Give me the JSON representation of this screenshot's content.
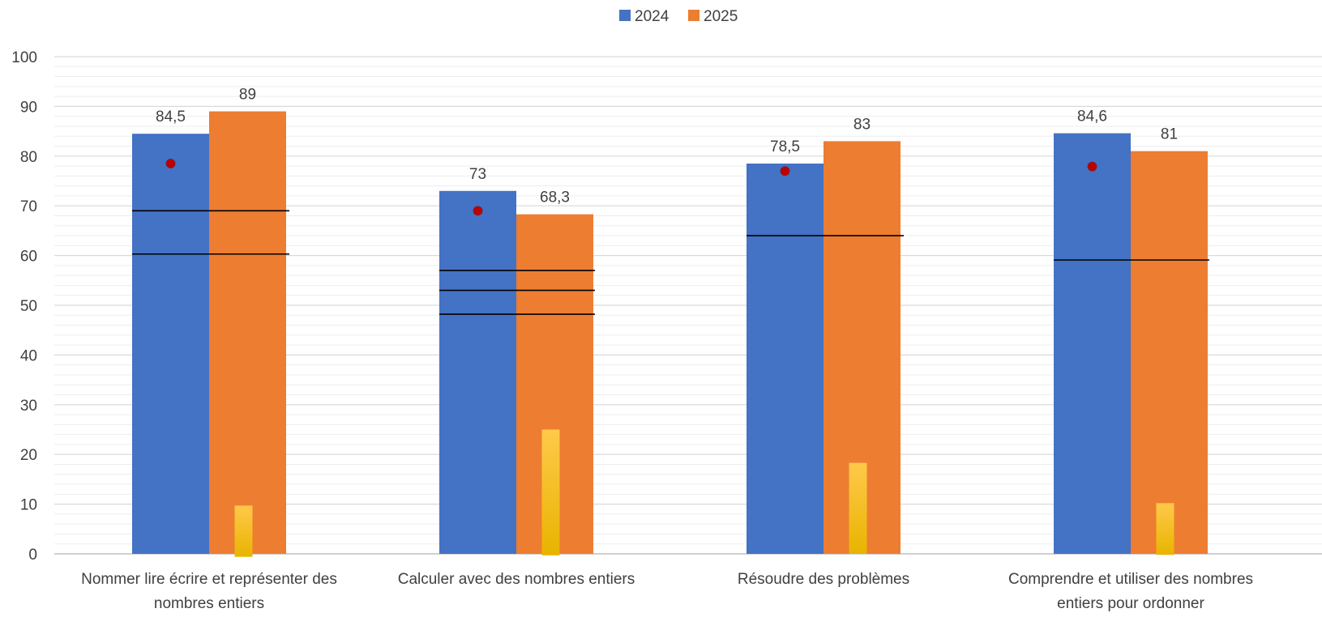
{
  "chart_data": {
    "type": "bar",
    "categories": [
      [
        "Nommer lire écrire et représenter des",
        "nombres entiers"
      ],
      [
        "Calculer avec des nombres entiers"
      ],
      [
        "Résoudre des problèmes"
      ],
      [
        "Comprendre et utiliser des nombres",
        "entiers pour ordonner"
      ]
    ],
    "series": [
      {
        "name": "2024",
        "color": "#4472C4",
        "values": [
          84.5,
          73,
          78.5,
          84.6
        ],
        "labels": [
          "84,5",
          "73",
          "78,5",
          "84,6"
        ]
      },
      {
        "name": "2025",
        "color": "#ED7D31",
        "values": [
          89,
          68.3,
          83,
          81
        ],
        "labels": [
          "89",
          "68,3",
          "83",
          "81"
        ]
      }
    ],
    "overlay_bars": {
      "color_top": "#FFC94A",
      "color_bottom": "#E8B400",
      "values": [
        9.7,
        25,
        18.3,
        10.2
      ],
      "bottoms": [
        -0.6,
        -0.3,
        0,
        -0.2
      ]
    },
    "markers": {
      "color": "#C00000",
      "values": [
        78.5,
        69,
        77,
        77.9
      ]
    },
    "reference_lines": [
      [
        69,
        60.3
      ],
      [
        57,
        53,
        48.2
      ],
      [
        64
      ],
      [
        59.1
      ]
    ],
    "legend_position": "top",
    "ylim": [
      0,
      100
    ],
    "yticks": [
      0,
      10,
      20,
      30,
      40,
      50,
      60,
      70,
      80,
      90,
      100
    ],
    "minor_gridlines": true,
    "xlabel": "",
    "ylabel": ""
  }
}
